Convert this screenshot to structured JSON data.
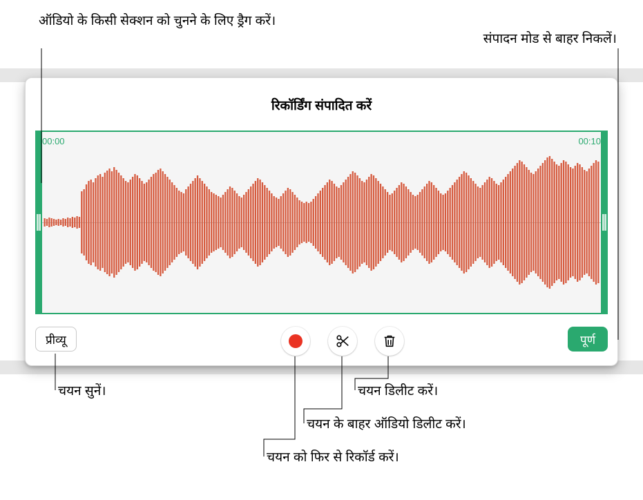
{
  "callouts": {
    "top_left": "ऑडियो के किसी सेक्शन को चुनने के लिए ड्रैग करें।",
    "top_right": "संपादन मोड से बाहर निकलें।",
    "listen": "चयन सुनें।",
    "delete_sel": "चयन डिलीट करें।",
    "delete_outside": "चयन के बाहर ऑडियो डिलीट करें।",
    "rerecord": "चयन को फिर से रिकॉर्ड करें।"
  },
  "editor": {
    "title": "रिकॉर्डिंग संपादित करें",
    "time_start": "00:00",
    "time_end": "00:10",
    "preview_label": "प्रीव्यू",
    "done_label": "पूर्ण",
    "colors": {
      "accent": "#2aa96f",
      "wave": "#d65b3f",
      "bg": "#f5f5f5",
      "record": "#ea3323"
    },
    "waveform": {
      "bar_count": 240,
      "bar_spacing": 3.3,
      "envelope": [
        6,
        5,
        7,
        6,
        5,
        4,
        5,
        4,
        6,
        5,
        7,
        6,
        8,
        7,
        9,
        8,
        45,
        48,
        55,
        60,
        62,
        58,
        64,
        68,
        70,
        66,
        72,
        75,
        78,
        74,
        80,
        76,
        72,
        68,
        64,
        60,
        58,
        62,
        66,
        70,
        68,
        64,
        60,
        56,
        58,
        62,
        66,
        70,
        72,
        76,
        78,
        74,
        70,
        66,
        62,
        58,
        54,
        50,
        46,
        44,
        42,
        48,
        52,
        56,
        60,
        64,
        68,
        64,
        60,
        56,
        52,
        48,
        44,
        42,
        40,
        38,
        36,
        40,
        44,
        48,
        52,
        50,
        46,
        42,
        38,
        36,
        40,
        44,
        48,
        52,
        56,
        60,
        64,
        62,
        58,
        54,
        50,
        46,
        42,
        38,
        36,
        34,
        38,
        42,
        46,
        50,
        48,
        44,
        40,
        36,
        32,
        30,
        28,
        30,
        28,
        30,
        34,
        38,
        42,
        46,
        50,
        54,
        58,
        62,
        60,
        56,
        52,
        50,
        54,
        58,
        62,
        66,
        70,
        74,
        72,
        68,
        64,
        60,
        58,
        62,
        66,
        70,
        68,
        64,
        60,
        56,
        52,
        48,
        44,
        40,
        42,
        46,
        50,
        54,
        58,
        56,
        52,
        48,
        44,
        40,
        38,
        40,
        44,
        48,
        52,
        56,
        60,
        58,
        54,
        50,
        46,
        42,
        40,
        42,
        46,
        50,
        54,
        58,
        62,
        66,
        70,
        74,
        72,
        68,
        64,
        60,
        56,
        52,
        50,
        54,
        58,
        62,
        66,
        64,
        60,
        56,
        54,
        58,
        62,
        66,
        70,
        74,
        78,
        82,
        86,
        90,
        88,
        84,
        80,
        76,
        72,
        70,
        74,
        78,
        82,
        86,
        90,
        94,
        96,
        92,
        88,
        84,
        82,
        86,
        90,
        88,
        84,
        80,
        78,
        82,
        86,
        84,
        80,
        76,
        74,
        78,
        82,
        86,
        90,
        88
      ]
    }
  }
}
